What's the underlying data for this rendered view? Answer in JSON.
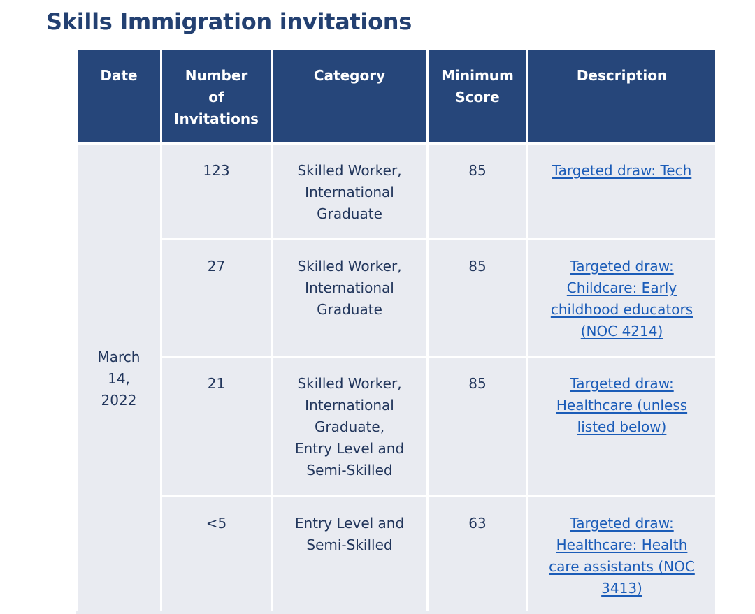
{
  "page": {
    "title": "Skills Immigration invitations"
  },
  "table": {
    "headers": {
      "date": "Date",
      "invitations": [
        "Number",
        "of",
        "Invitations"
      ],
      "category": "Category",
      "min_score": [
        "Minimum",
        "Score"
      ],
      "description": "Description"
    },
    "date_lines": [
      "March",
      "14,",
      "2022"
    ],
    "rows": [
      {
        "invitations": "123",
        "category_lines": [
          "Skilled Worker,",
          "International",
          "Graduate"
        ],
        "min_score": "85",
        "description_lines": [
          "Targeted draw: Tech"
        ]
      },
      {
        "invitations": "27",
        "category_lines": [
          "Skilled Worker,",
          "International",
          "Graduate"
        ],
        "min_score": "85",
        "description_lines": [
          "Targeted draw:",
          "Childcare: Early",
          "childhood educators",
          "(NOC 4214)"
        ]
      },
      {
        "invitations": "21",
        "category_lines": [
          "Skilled Worker,",
          "International",
          "Graduate,",
          "Entry Level and",
          "Semi-Skilled"
        ],
        "min_score": "85",
        "description_lines": [
          "Targeted draw:",
          "Healthcare (unless",
          "listed below)"
        ]
      },
      {
        "invitations": "<5",
        "category_lines": [
          "Entry Level and",
          "Semi-Skilled"
        ],
        "min_score": "63",
        "description_lines": [
          "Targeted draw:",
          "Healthcare: Health",
          "care assistants (NOC",
          "3413)"
        ]
      }
    ]
  },
  "colors": {
    "title": "#234071",
    "header_bg": "#26467a",
    "cell_bg": "#e9ebf1",
    "link": "#1b5cb8"
  }
}
